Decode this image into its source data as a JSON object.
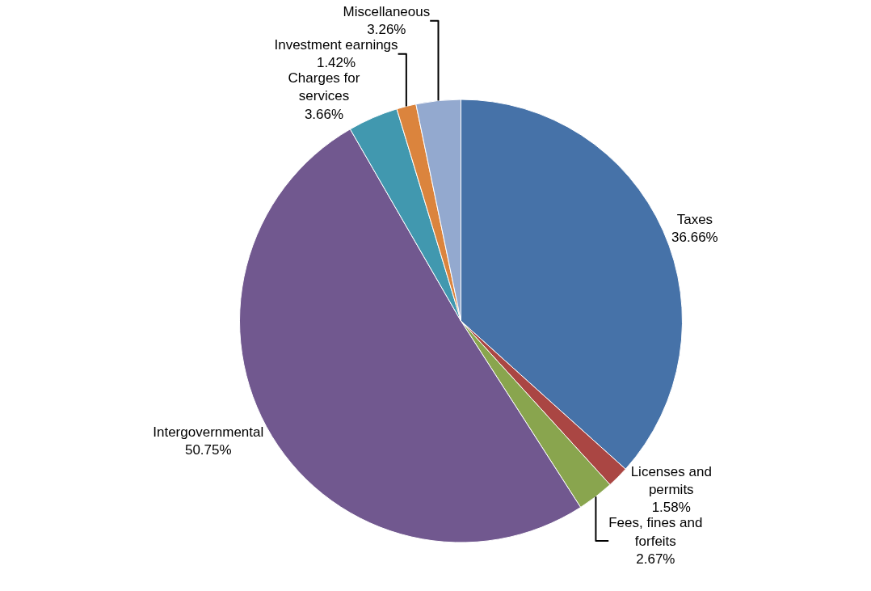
{
  "chart_data": {
    "type": "pie",
    "categories": [
      "Taxes",
      "Licenses and\npermits",
      "Fees, fines and\nforfeits",
      "Intergovernmental",
      "Charges for\nservices",
      "Investment earnings",
      "Miscellaneous"
    ],
    "values": [
      36.66,
      1.58,
      2.67,
      50.75,
      3.66,
      1.42,
      3.26
    ],
    "value_labels": [
      "36.66%",
      "1.58%",
      "2.67%",
      "50.75%",
      "3.66%",
      "1.42%",
      "3.26%"
    ],
    "colors": [
      "#4672a8",
      "#aa4643",
      "#89a54e",
      "#71588f",
      "#4198af",
      "#db843d",
      "#93a9cf"
    ],
    "legend": false
  }
}
